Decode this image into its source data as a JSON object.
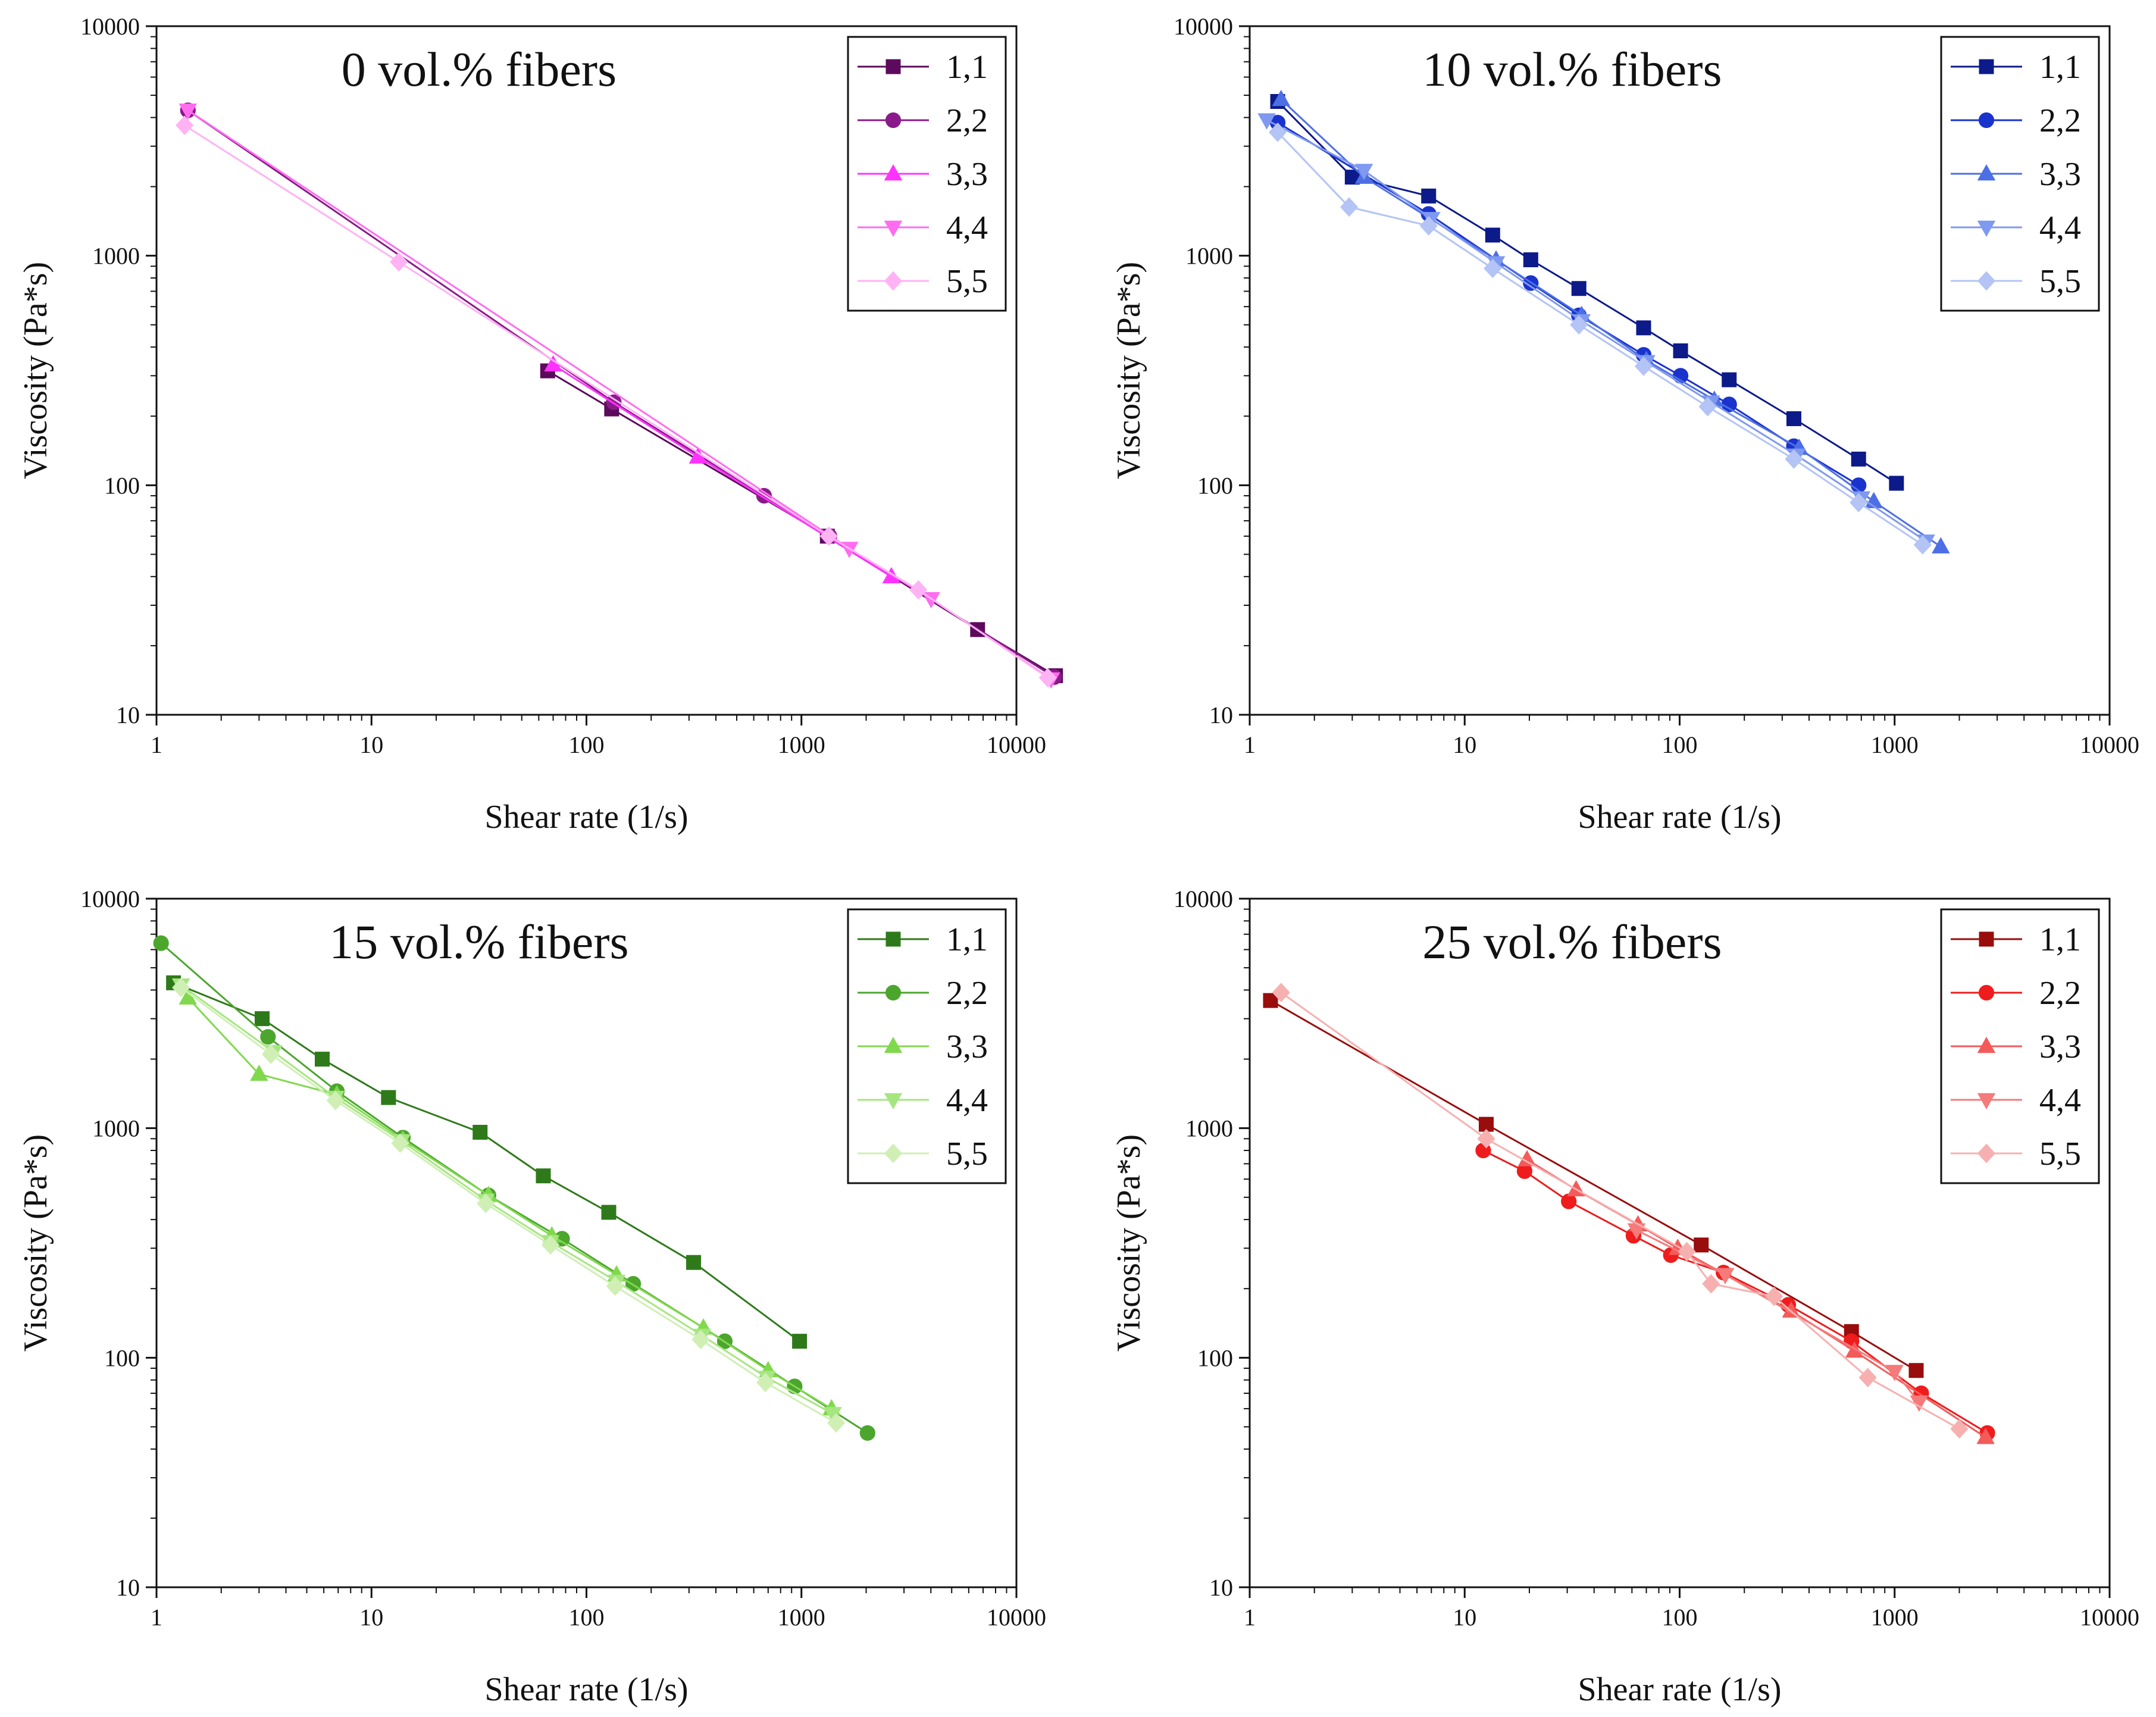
{
  "chart_data": [
    {
      "type": "line",
      "title": "0 vol.% fibers",
      "xlabel": "Shear rate (1/s)",
      "ylabel": "Viscosity (Pa*s)",
      "xscale": "log",
      "yscale": "log",
      "xlim": [
        1,
        10000
      ],
      "ylim": [
        10,
        10000
      ],
      "xticks": [
        "1",
        "10",
        "100",
        "1000",
        "10000"
      ],
      "yticks": [
        "10",
        "100",
        "1000",
        "10000"
      ],
      "legend_position": "top-right",
      "series": [
        {
          "name": "1,1",
          "marker": "square",
          "color": "#5c0a5c",
          "x": [
            66,
            131,
            1320,
            6600,
            15200
          ],
          "y": [
            315,
            215,
            60,
            23.5,
            14.8
          ]
        },
        {
          "name": "2,2",
          "marker": "circle",
          "color": "#8a1a8a",
          "x": [
            1.4,
            134,
            670,
            1350,
            15000
          ],
          "y": [
            4300,
            230,
            90,
            60,
            14.6
          ]
        },
        {
          "name": "3,3",
          "marker": "triangle-up",
          "color": "#ff33ff",
          "x": [
            70,
            330,
            2620
          ],
          "y": [
            335,
            133,
            40
          ]
        },
        {
          "name": "4,4",
          "marker": "triangle-down",
          "color": "#ff6cf0",
          "x": [
            1.4,
            1670,
            4010,
            14500
          ],
          "y": [
            4300,
            53,
            32,
            14.3
          ]
        },
        {
          "name": "5,5",
          "marker": "diamond",
          "color": "#ffb3f4",
          "x": [
            1.35,
            13.4,
            1340,
            3500,
            14000
          ],
          "y": [
            3700,
            940,
            60,
            35,
            14.5
          ]
        }
      ]
    },
    {
      "type": "line",
      "title": "10 vol.% fibers",
      "xlabel": "Shear rate (1/s)",
      "ylabel": "Viscosity (Pa*s)",
      "xscale": "log",
      "yscale": "log",
      "xlim": [
        1,
        10000
      ],
      "ylim": [
        10,
        10000
      ],
      "xticks": [
        "1",
        "10",
        "100",
        "1000",
        "10000"
      ],
      "yticks": [
        "10",
        "100",
        "1000",
        "10000"
      ],
      "legend_position": "top-right",
      "series": [
        {
          "name": "1,1",
          "marker": "square",
          "color": "#0d1a8a",
          "x": [
            1.35,
            3.0,
            6.8,
            13.5,
            20.3,
            34,
            68,
            101,
            170,
            340,
            680,
            1020
          ],
          "y": [
            4700,
            2200,
            1820,
            1230,
            960,
            720,
            485,
            385,
            288,
            195,
            130,
            102
          ]
        },
        {
          "name": "2,2",
          "marker": "circle",
          "color": "#1a33cc",
          "x": [
            1.35,
            6.8,
            20.3,
            34,
            68,
            101,
            170,
            340,
            680
          ],
          "y": [
            3800,
            1520,
            760,
            550,
            370,
            300,
            225,
            148,
            100
          ]
        },
        {
          "name": "3,3",
          "marker": "triangle-up",
          "color": "#4d6fe6",
          "x": [
            1.4,
            3.4,
            14,
            35,
            70,
            145,
            360,
            800,
            1640
          ],
          "y": [
            4800,
            2200,
            960,
            550,
            350,
            235,
            145,
            85,
            54
          ]
        },
        {
          "name": "4,4",
          "marker": "triangle-down",
          "color": "#7f99f0",
          "x": [
            1.2,
            3.4,
            7,
            14,
            35,
            70,
            140,
            350,
            700,
            1400
          ],
          "y": [
            3900,
            2350,
            1450,
            930,
            520,
            345,
            230,
            135,
            88,
            57
          ]
        },
        {
          "name": "5,5",
          "marker": "diamond",
          "color": "#b3c4f5",
          "x": [
            1.35,
            2.9,
            6.8,
            13.5,
            34,
            68,
            135,
            340,
            680,
            1350
          ],
          "y": [
            3450,
            1630,
            1350,
            880,
            500,
            330,
            220,
            130,
            84,
            55
          ]
        }
      ]
    },
    {
      "type": "line",
      "title": "15 vol.% fibers",
      "xlabel": "Shear rate (1/s)",
      "ylabel": "Viscosity (Pa*s)",
      "xscale": "log",
      "yscale": "log",
      "xlim": [
        1,
        10000
      ],
      "ylim": [
        10,
        10000
      ],
      "xticks": [
        "1",
        "10",
        "100",
        "1000",
        "10000"
      ],
      "yticks": [
        "10",
        "100",
        "1000",
        "10000"
      ],
      "legend_position": "top-right",
      "series": [
        {
          "name": "1,1",
          "marker": "square",
          "color": "#2e7a1a",
          "x": [
            1.2,
            3.1,
            5.9,
            12,
            32,
            63,
            127,
            315,
            980
          ],
          "y": [
            4300,
            3000,
            2000,
            1360,
            960,
            620,
            430,
            260,
            118
          ]
        },
        {
          "name": "2,2",
          "marker": "circle",
          "color": "#4ca62e",
          "x": [
            1.05,
            3.3,
            6.9,
            14,
            35,
            77,
            165,
            440,
            930,
            2030
          ],
          "y": [
            6400,
            2500,
            1450,
            910,
            510,
            330,
            210,
            118,
            75,
            47
          ]
        },
        {
          "name": "3,3",
          "marker": "triangle-up",
          "color": "#80d94d",
          "x": [
            1.4,
            3.0,
            6.9,
            14,
            35,
            69,
            138,
            350,
            700,
            1380
          ],
          "y": [
            3700,
            1720,
            1400,
            890,
            510,
            340,
            230,
            135,
            88,
            60
          ]
        },
        {
          "name": "4,4",
          "marker": "triangle-down",
          "color": "#a6e680",
          "x": [
            1.3,
            3.5,
            6.8,
            13.8,
            34,
            68,
            138,
            345,
            690,
            1400
          ],
          "y": [
            4200,
            2150,
            1360,
            880,
            485,
            320,
            215,
            125,
            82,
            57
          ]
        },
        {
          "name": "5,5",
          "marker": "diamond",
          "color": "#cfefb5",
          "x": [
            1.3,
            3.4,
            6.8,
            13.6,
            34,
            68,
            136,
            340,
            680,
            1450
          ],
          "y": [
            4100,
            2100,
            1320,
            860,
            470,
            310,
            205,
            120,
            78,
            52
          ]
        }
      ]
    },
    {
      "type": "line",
      "title": "25 vol.% fibers",
      "xlabel": "Shear rate (1/s)",
      "ylabel": "Viscosity (Pa*s)",
      "xscale": "log",
      "yscale": "log",
      "xlim": [
        1,
        10000
      ],
      "ylim": [
        10,
        10000
      ],
      "xticks": [
        "1",
        "10",
        "100",
        "1000",
        "10000"
      ],
      "yticks": [
        "10",
        "100",
        "1000",
        "10000"
      ],
      "legend_position": "top-right",
      "series": [
        {
          "name": "1,1",
          "marker": "square",
          "color": "#990d0d",
          "x": [
            1.25,
            12.6,
            126,
            630,
            1260
          ],
          "y": [
            3600,
            1040,
            310,
            130,
            88
          ]
        },
        {
          "name": "2,2",
          "marker": "circle",
          "color": "#ee1c1c",
          "x": [
            12.2,
            19,
            30.5,
            61,
            91,
            160,
            320,
            630,
            1330,
            2700
          ],
          "y": [
            800,
            650,
            480,
            340,
            280,
            235,
            170,
            118,
            70,
            47
          ]
        },
        {
          "name": "3,3",
          "marker": "triangle-up",
          "color": "#f55a5a",
          "x": [
            19.5,
            33,
            64,
            98,
            330,
            650,
            2650
          ],
          "y": [
            730,
            540,
            380,
            300,
            160,
            107,
            45
          ]
        },
        {
          "name": "4,4",
          "marker": "triangle-down",
          "color": "#f57a7a",
          "x": [
            63,
            163,
            1000,
            1300
          ],
          "y": [
            360,
            230,
            87,
            64
          ]
        },
        {
          "name": "5,5",
          "marker": "diamond",
          "color": "#f7b0b0",
          "x": [
            1.4,
            12.6,
            108,
            140,
            275,
            750,
            2000
          ],
          "y": [
            3900,
            900,
            290,
            210,
            185,
            82,
            49
          ]
        }
      ]
    }
  ]
}
